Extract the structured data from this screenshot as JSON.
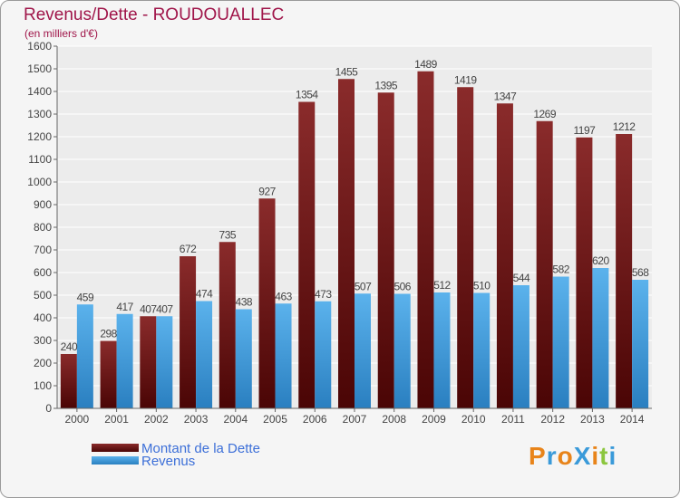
{
  "title": "Revenus/Dette - ROUDOUALLEC",
  "subtitle": "(en milliers d'€)",
  "colors": {
    "debt_dark": "#4a0e0e",
    "debt_light": "#8a2b2b",
    "rev_dark": "#2a7fc0",
    "rev_light": "#5bb2ec",
    "grid": "#ffffff",
    "axis_text": "#444444"
  },
  "legend": [
    {
      "label": "Montant de la Dette"
    },
    {
      "label": "Revenus"
    }
  ],
  "logo": "ProXiti",
  "chart_data": {
    "type": "bar",
    "title": "Revenus/Dette - ROUDOUALLEC",
    "ylabel": "(en milliers d'€)",
    "categories": [
      "2000",
      "2001",
      "2002",
      "2003",
      "2004",
      "2005",
      "2006",
      "2007",
      "2008",
      "2009",
      "2010",
      "2011",
      "2012",
      "2013",
      "2014"
    ],
    "series": [
      {
        "name": "Montant de la Dette",
        "values": [
          240,
          298,
          407,
          672,
          735,
          927,
          1354,
          1455,
          1395,
          1489,
          1419,
          1347,
          1269,
          1197,
          1212
        ]
      },
      {
        "name": "Revenus",
        "values": [
          459,
          417,
          407,
          474,
          438,
          463,
          473,
          507,
          506,
          512,
          510,
          544,
          582,
          620,
          568
        ]
      }
    ],
    "ylim": [
      0,
      1600
    ],
    "yticks": [
      0,
      100,
      200,
      300,
      400,
      500,
      600,
      700,
      800,
      900,
      1000,
      1100,
      1200,
      1300,
      1400,
      1500,
      1600
    ],
    "grid": true
  }
}
